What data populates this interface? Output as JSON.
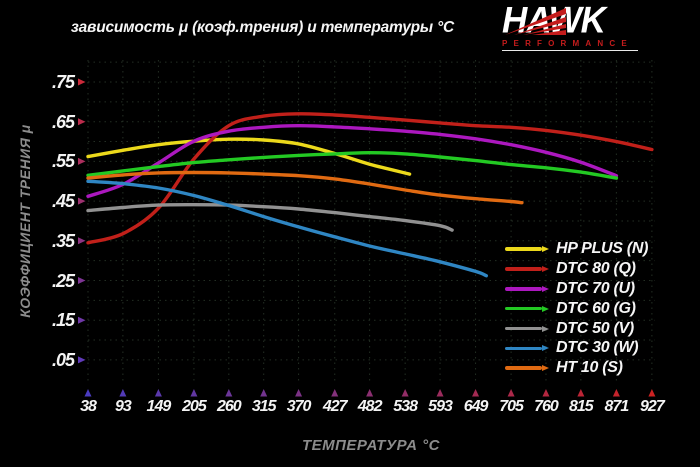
{
  "title": "зависимость μ (коэф.трения) и температуры °C",
  "logo": {
    "brand": "HAWK",
    "subtitle": "PERFORMANCE",
    "brand_color": "#ffffff",
    "accent_color": "#c41c1c"
  },
  "chart_data": {
    "type": "line",
    "title": "зависимость μ (коэф.трения) и температуры °C",
    "xlabel": "ТЕМПЕРАТУРА °C",
    "ylabel": "КОЭФФИЦИЕНТ ТРЕНИЯ μ",
    "x_ticks": [
      38,
      93,
      149,
      205,
      260,
      315,
      370,
      427,
      482,
      538,
      593,
      649,
      705,
      760,
      815,
      871,
      927
    ],
    "y_ticks": [
      0.75,
      0.65,
      0.55,
      0.45,
      0.35,
      0.25,
      0.15,
      0.05
    ],
    "y_tick_labels": [
      ".75",
      ".65",
      ".55",
      ".45",
      ".35",
      ".25",
      ".15",
      ".05"
    ],
    "xlim": [
      38,
      927
    ],
    "ylim": [
      0,
      0.81
    ],
    "grid": true,
    "grid_color": "#232e23",
    "legend_position": "inside-bottom-right",
    "axis_colors": {
      "y_axis_top": "#cc2233",
      "y_axis_mid": "#8a2c96",
      "y_axis_bottom": "#3535ad",
      "x_axis_left": "#3535ad",
      "x_axis_mid": "#7a2a86",
      "x_axis_right": "#cc2222"
    },
    "series": [
      {
        "name": "HP PLUS (N)",
        "color": "#ecd91b",
        "points": [
          [
            38,
            0.562
          ],
          [
            93,
            0.578
          ],
          [
            149,
            0.592
          ],
          [
            205,
            0.601
          ],
          [
            260,
            0.606
          ],
          [
            315,
            0.604
          ],
          [
            370,
            0.594
          ],
          [
            427,
            0.57
          ],
          [
            482,
            0.543
          ],
          [
            545,
            0.518
          ]
        ]
      },
      {
        "name": "DTC 80 (Q)",
        "color": "#c1201a",
        "points": [
          [
            38,
            0.345
          ],
          [
            93,
            0.368
          ],
          [
            149,
            0.432
          ],
          [
            205,
            0.556
          ],
          [
            260,
            0.64
          ],
          [
            315,
            0.664
          ],
          [
            370,
            0.67
          ],
          [
            427,
            0.667
          ],
          [
            482,
            0.661
          ],
          [
            538,
            0.654
          ],
          [
            593,
            0.647
          ],
          [
            649,
            0.64
          ],
          [
            705,
            0.636
          ],
          [
            760,
            0.628
          ],
          [
            815,
            0.616
          ],
          [
            871,
            0.6
          ],
          [
            927,
            0.58
          ]
        ]
      },
      {
        "name": "DTC 70 (U)",
        "color": "#ac18bf",
        "points": [
          [
            38,
            0.462
          ],
          [
            93,
            0.492
          ],
          [
            149,
            0.546
          ],
          [
            205,
            0.601
          ],
          [
            260,
            0.626
          ],
          [
            315,
            0.636
          ],
          [
            370,
            0.64
          ],
          [
            427,
            0.637
          ],
          [
            482,
            0.632
          ],
          [
            538,
            0.626
          ],
          [
            593,
            0.618
          ],
          [
            649,
            0.607
          ],
          [
            705,
            0.592
          ],
          [
            760,
            0.573
          ],
          [
            815,
            0.548
          ],
          [
            871,
            0.514
          ]
        ]
      },
      {
        "name": "DTC 60 (G)",
        "color": "#23c923",
        "points": [
          [
            38,
            0.515
          ],
          [
            93,
            0.526
          ],
          [
            149,
            0.537
          ],
          [
            205,
            0.547
          ],
          [
            260,
            0.554
          ],
          [
            315,
            0.56
          ],
          [
            370,
            0.565
          ],
          [
            427,
            0.569
          ],
          [
            482,
            0.572
          ],
          [
            538,
            0.569
          ],
          [
            593,
            0.561
          ],
          [
            649,
            0.552
          ],
          [
            705,
            0.542
          ],
          [
            760,
            0.534
          ],
          [
            815,
            0.523
          ],
          [
            871,
            0.508
          ]
        ]
      },
      {
        "name": "DTC 50 (V)",
        "color": "#919191",
        "points": [
          [
            38,
            0.426
          ],
          [
            93,
            0.434
          ],
          [
            149,
            0.44
          ],
          [
            205,
            0.441
          ],
          [
            260,
            0.44
          ],
          [
            315,
            0.436
          ],
          [
            370,
            0.43
          ],
          [
            427,
            0.421
          ],
          [
            482,
            0.411
          ],
          [
            538,
            0.401
          ],
          [
            593,
            0.388
          ],
          [
            612,
            0.377
          ]
        ]
      },
      {
        "name": "DTC 30 (W)",
        "color": "#2f86c3",
        "points": [
          [
            38,
            0.5
          ],
          [
            93,
            0.494
          ],
          [
            149,
            0.483
          ],
          [
            205,
            0.464
          ],
          [
            260,
            0.439
          ],
          [
            315,
            0.411
          ],
          [
            370,
            0.385
          ],
          [
            427,
            0.36
          ],
          [
            482,
            0.337
          ],
          [
            538,
            0.317
          ],
          [
            593,
            0.297
          ],
          [
            649,
            0.273
          ],
          [
            666,
            0.262
          ]
        ]
      },
      {
        "name": "HT 10 (S)",
        "color": "#e06a12",
        "points": [
          [
            38,
            0.508
          ],
          [
            93,
            0.516
          ],
          [
            149,
            0.521
          ],
          [
            205,
            0.522
          ],
          [
            260,
            0.521
          ],
          [
            315,
            0.518
          ],
          [
            370,
            0.514
          ],
          [
            427,
            0.506
          ],
          [
            482,
            0.493
          ],
          [
            538,
            0.478
          ],
          [
            593,
            0.465
          ],
          [
            649,
            0.456
          ],
          [
            705,
            0.449
          ],
          [
            722,
            0.446
          ]
        ]
      }
    ]
  }
}
